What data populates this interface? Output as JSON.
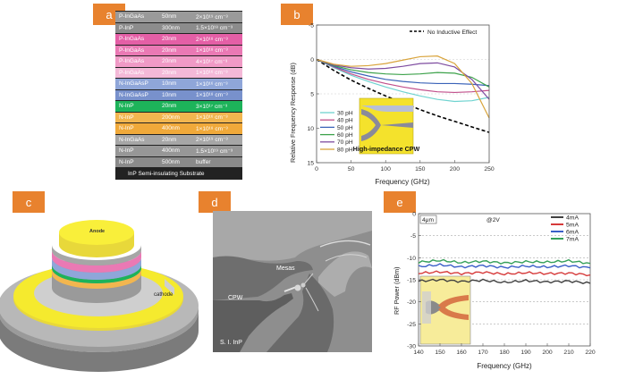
{
  "panel_labels": {
    "a": "a",
    "b": "b",
    "c": "c",
    "d": "d",
    "e": "e"
  },
  "layer_stack": {
    "rows": [
      {
        "material": "P-InGaAs",
        "thickness": "50nm",
        "doping": "2×10¹⁹ cm⁻³",
        "color": "#9a9a9a"
      },
      {
        "material": "P-InP",
        "thickness": "300nm",
        "doping": "1.5×10¹⁸ cm⁻³",
        "color": "#8c8c8c"
      },
      {
        "material": "P-InGaAs",
        "thickness": "20nm",
        "doping": "2×10¹⁸ cm⁻³",
        "color": "#e45fa6"
      },
      {
        "material": "P-InGaAs",
        "thickness": "20nm",
        "doping": "1×10¹⁸ cm⁻³",
        "color": "#ea79b4"
      },
      {
        "material": "P-InGaAs",
        "thickness": "20nm",
        "doping": "4×10¹⁷ cm⁻³",
        "color": "#f09ac6"
      },
      {
        "material": "P-InGaAs",
        "thickness": "20nm",
        "doping": "1×10¹⁶ cm⁻³",
        "color": "#f4b9d8"
      },
      {
        "material": "N-InGaAsP",
        "thickness": "10nm",
        "doping": "1×10¹⁶ cm⁻³",
        "color": "#8fa6d9"
      },
      {
        "material": "N-InGaAsP",
        "thickness": "10nm",
        "doping": "1×10¹⁸ cm⁻³",
        "color": "#7891cc"
      },
      {
        "material": "N-InP",
        "thickness": "20nm",
        "doping": "3×10¹⁷ cm⁻³",
        "color": "#1db35a"
      },
      {
        "material": "N-InP",
        "thickness": "200nm",
        "doping": "1×10¹⁶ cm⁻³",
        "color": "#f2b64f"
      },
      {
        "material": "N-InP",
        "thickness": "400nm",
        "doping": "1×10¹⁸ cm⁻³",
        "color": "#f0a93a"
      },
      {
        "material": "N-InGaAs",
        "thickness": "20nm",
        "doping": "2×10¹⁹ cm⁻³",
        "color": "#a6a6a6"
      },
      {
        "material": "N-InP",
        "thickness": "400nm",
        "doping": "1.5×10¹⁹ cm⁻³",
        "color": "#979797"
      },
      {
        "material": "N-InP",
        "thickness": "500nm",
        "doping": "buffer",
        "color": "#8a8a8a"
      }
    ],
    "substrate": "InP  Semi-insulating  Substrate"
  },
  "chart_data": [
    {
      "type": "line",
      "panel": "b",
      "title": "",
      "xlabel": "Frequency (GHz)",
      "ylabel": "Relative Frequency Response (dB)",
      "xlim": [
        0,
        250
      ],
      "ylim": [
        15,
        -5
      ],
      "xticks": [
        "0",
        "50",
        "100",
        "150",
        "200",
        "250"
      ],
      "yticks": [
        "-5",
        "0",
        "5",
        "10",
        "15"
      ],
      "legend": [
        "30 pH",
        "40 pH",
        "50 pH",
        "60 pH",
        "70 pH",
        "80 pH"
      ],
      "inset_label": "High-impedance CPW",
      "x": [
        0,
        25,
        50,
        75,
        100,
        125,
        150,
        175,
        200,
        225,
        250
      ],
      "series": [
        {
          "name": "No Inductive Effect",
          "color": "#000000",
          "dashed": true,
          "values": [
            0,
            1.6,
            3.0,
            4.2,
            5.3,
            6.3,
            7.3,
            8.2,
            9.0,
            9.8,
            10.6
          ]
        },
        {
          "name": "30 pH",
          "color": "#6fd3d0",
          "values": [
            0,
            1.2,
            2.3,
            3.2,
            4.0,
            4.7,
            5.3,
            5.8,
            6.1,
            6.0,
            5.5
          ]
        },
        {
          "name": "40 pH",
          "color": "#c14f8b",
          "values": [
            0,
            1.1,
            2.1,
            2.9,
            3.5,
            4.0,
            4.4,
            4.7,
            4.8,
            4.7,
            4.5
          ]
        },
        {
          "name": "50 pH",
          "color": "#3a63b8",
          "values": [
            0,
            1.0,
            1.8,
            2.4,
            2.9,
            3.2,
            3.4,
            3.5,
            3.5,
            3.6,
            3.8
          ]
        },
        {
          "name": "60 pH",
          "color": "#3da24b",
          "values": [
            0,
            0.9,
            1.5,
            1.9,
            2.1,
            2.2,
            2.1,
            1.9,
            2.0,
            2.6,
            4.0
          ]
        },
        {
          "name": "70 pH",
          "color": "#7e4ca0",
          "values": [
            0,
            0.8,
            1.2,
            1.4,
            1.3,
            1.0,
            0.6,
            0.5,
            1.1,
            2.9,
            5.8
          ]
        },
        {
          "name": "80 pH",
          "color": "#d9a43c",
          "values": [
            0,
            0.7,
            1.0,
            0.9,
            0.6,
            0.1,
            -0.4,
            -0.5,
            0.6,
            3.5,
            8.5
          ]
        }
      ]
    },
    {
      "type": "line",
      "panel": "e",
      "title": "",
      "xlabel": "Frequency (GHz)",
      "ylabel": "RF Power (dBm)",
      "xlim": [
        140,
        220
      ],
      "ylim": [
        -30,
        0
      ],
      "xticks": [
        "140",
        "150",
        "160",
        "170",
        "180",
        "190",
        "200",
        "210",
        "220"
      ],
      "yticks": [
        "-30",
        "-25",
        "-20",
        "-15",
        "-10",
        "-5",
        "0"
      ],
      "annotations": [
        "4μm",
        "@2V"
      ],
      "x": [
        140,
        150,
        160,
        170,
        180,
        190,
        200,
        210,
        220
      ],
      "series": [
        {
          "name": "4mA",
          "color": "#404040",
          "values": [
            -15.3,
            -15.0,
            -15.4,
            -15.1,
            -15.6,
            -15.2,
            -15.5,
            -15.3,
            -15.8
          ]
        },
        {
          "name": "5mA",
          "color": "#d63a3a",
          "values": [
            -13.5,
            -13.2,
            -13.6,
            -13.3,
            -13.7,
            -13.4,
            -13.6,
            -13.5,
            -13.9
          ]
        },
        {
          "name": "6mA",
          "color": "#3a5fc8",
          "values": [
            -12.0,
            -11.6,
            -12.1,
            -11.8,
            -12.2,
            -11.9,
            -12.1,
            -11.8,
            -12.3
          ]
        },
        {
          "name": "7mA",
          "color": "#36a05a",
          "values": [
            -11.0,
            -10.6,
            -11.1,
            -10.8,
            -11.2,
            -10.9,
            -11.0,
            -10.7,
            -11.3
          ]
        }
      ]
    }
  ],
  "device_3d": {
    "anode": "Anode",
    "cathode": "cathode"
  },
  "sem": {
    "mesas": "Mesas",
    "cpw": "CPW",
    "substrate": "S. I. InP"
  }
}
